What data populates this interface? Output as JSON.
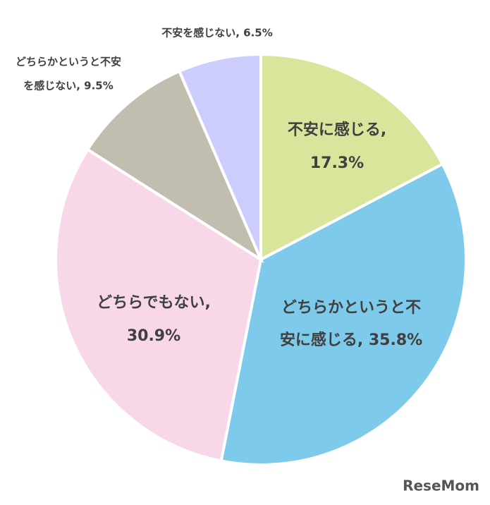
{
  "chart_data": {
    "type": "pie",
    "values": [
      17.3,
      35.8,
      30.9,
      9.5,
      6.5
    ],
    "value_labels": [
      [
        "不安に感じる,",
        "17.3%"
      ],
      [
        "どちらかというと不",
        "安に感じる, 35.8%"
      ],
      [
        "どちらでもない,",
        "30.9%"
      ],
      [
        "どちらかというと不安",
        "を感じない, 9.5%"
      ],
      [
        "不安を感じない, 6.5%"
      ]
    ],
    "colors": [
      "#d9e59a",
      "#7dcaea",
      "#f8d8e8",
      "#c1beb0",
      "#ccccfd"
    ],
    "start_angle": 90,
    "direction": "clockwise",
    "watermark": "ReseMom"
  }
}
